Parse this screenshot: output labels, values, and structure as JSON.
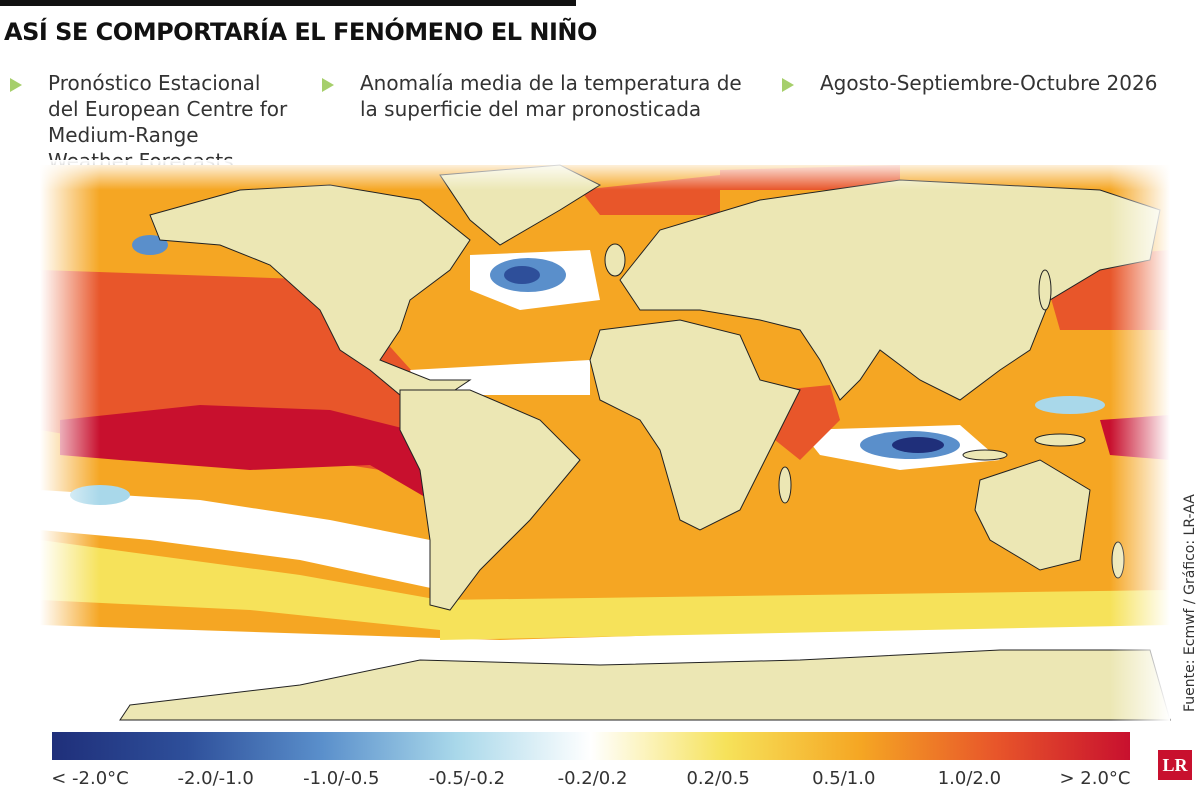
{
  "header": {
    "title": "ASÍ SE COMPORTARÍA EL FENÓMENO EL NIÑO"
  },
  "bullets": [
    "Pronóstico Estacional del European Centre for Medium-Range Weather Forecasts",
    "Anomalía media de la temperatura de la superficie del mar pronosticada",
    "Agosto-Septiembre-Octubre 2026"
  ],
  "legend": {
    "labels": [
      "< -2.0°C",
      "-2.0/-1.0",
      "-1.0/-0.5",
      "-0.5/-0.2",
      "-0.2/0.2",
      "0.2/0.5",
      "0.5/1.0",
      "1.0/2.0",
      "> 2.0°C"
    ],
    "colors": [
      "#1f2f7a",
      "#2e4f9a",
      "#5a8fcb",
      "#a9d8ea",
      "#ffffff",
      "#f6e25a",
      "#f5a623",
      "#e8562a",
      "#c8102e"
    ]
  },
  "source": "Fuente: Ecmwf / Gráfico: LR-AA",
  "logo": "LR"
}
